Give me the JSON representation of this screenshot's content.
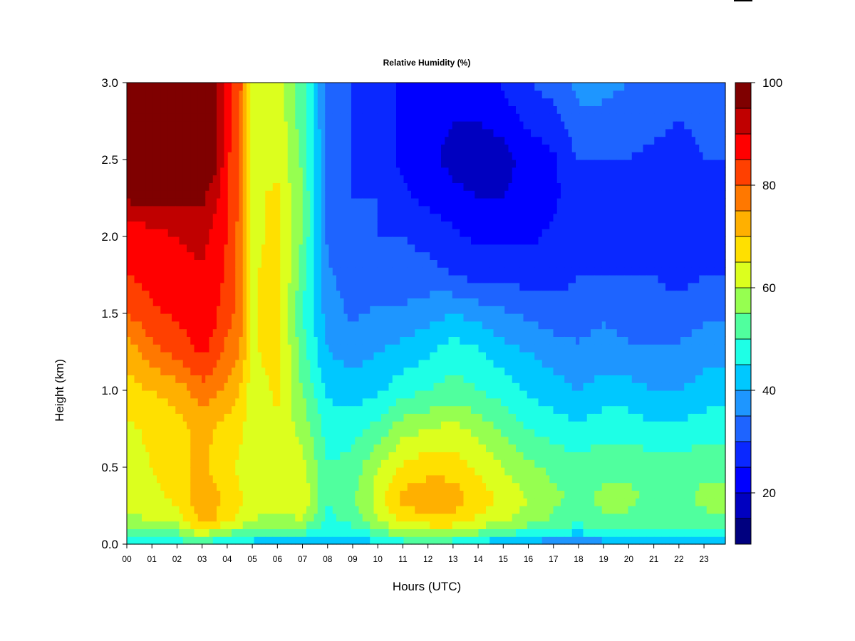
{
  "chart_data": {
    "type": "heatmap",
    "title": "Relative Humidity (%)",
    "xlabel": "Hours (UTC)",
    "ylabel": "Height (km)",
    "x_ticks": [
      "00",
      "01",
      "02",
      "03",
      "04",
      "05",
      "06",
      "07",
      "08",
      "09",
      "10",
      "11",
      "12",
      "13",
      "14",
      "15",
      "16",
      "17",
      "18",
      "19",
      "20",
      "21",
      "22",
      "23"
    ],
    "xlim": [
      0,
      23.85
    ],
    "y_ticks": [
      "0.0",
      "0.5",
      "1.0",
      "1.5",
      "2.0",
      "2.5",
      "3.0"
    ],
    "ylim": [
      0.0,
      3.0
    ],
    "colorbar": {
      "ticks": [
        "20",
        "40",
        "60",
        "80",
        "100"
      ],
      "range": [
        10,
        100
      ],
      "levels": [
        10,
        15,
        20,
        25,
        30,
        35,
        40,
        45,
        50,
        55,
        60,
        65,
        70,
        75,
        80,
        85,
        90,
        95,
        100
      ],
      "colors": [
        "#00007F",
        "#0000C0",
        "#0000FF",
        "#0A28FF",
        "#1E64FF",
        "#1E96FF",
        "#00C8FF",
        "#1EFFE6",
        "#50FF9E",
        "#96FF50",
        "#DCFF1E",
        "#FFE000",
        "#FFB000",
        "#FF7800",
        "#FF4000",
        "#FF0000",
        "#C00000",
        "#7F0000"
      ]
    },
    "grid": false,
    "values_note": "",
    "profile_heights_km": [
      0.0,
      0.05,
      0.15,
      0.3,
      0.5,
      0.75,
      1.0,
      1.25,
      1.5,
      1.75,
      2.0,
      2.25,
      2.5,
      2.75,
      3.0
    ],
    "profiles": [
      {
        "hour": 0.0,
        "rh": [
          45,
          50,
          58,
          63,
          63,
          64,
          68,
          72,
          80,
          85,
          85,
          96,
          98,
          98,
          98
        ]
      },
      {
        "hour": 1.0,
        "rh": [
          45,
          52,
          60,
          64,
          65,
          66,
          70,
          78,
          84,
          87,
          88,
          97,
          98,
          98,
          98
        ]
      },
      {
        "hour": 2.0,
        "rh": [
          45,
          52,
          62,
          66,
          67,
          68,
          72,
          82,
          86,
          88,
          90,
          97,
          98,
          98,
          98
        ]
      },
      {
        "hour": 3.0,
        "rh": [
          50,
          60,
          72,
          74,
          72,
          72,
          78,
          86,
          88,
          89,
          92,
          96,
          98,
          98,
          98
        ]
      },
      {
        "hour": 3.5,
        "rh": [
          45,
          55,
          70,
          72,
          68,
          70,
          76,
          83,
          86,
          87,
          88,
          92,
          98,
          98,
          98
        ]
      },
      {
        "hour": 4.0,
        "rh": [
          42,
          52,
          66,
          68,
          66,
          68,
          74,
          78,
          82,
          84,
          85,
          85,
          86,
          88,
          88
        ]
      },
      {
        "hour": 4.5,
        "rh": [
          40,
          50,
          64,
          66,
          64,
          66,
          70,
          75,
          78,
          78,
          78,
          80,
          80,
          80,
          82
        ]
      },
      {
        "hour": 5.0,
        "rh": [
          40,
          50,
          60,
          62,
          62,
          62,
          62,
          64,
          64,
          64,
          64,
          64,
          63,
          63,
          63
        ]
      },
      {
        "hour": 6.0,
        "rh": [
          40,
          48,
          58,
          62,
          62,
          64,
          66,
          68,
          68,
          68,
          66,
          66,
          64,
          64,
          64
        ]
      },
      {
        "hour": 7.0,
        "rh": [
          42,
          48,
          60,
          64,
          62,
          58,
          55,
          52,
          50,
          52,
          55,
          55,
          54,
          52,
          52
        ]
      },
      {
        "hour": 8.0,
        "rh": [
          40,
          44,
          48,
          50,
          50,
          48,
          44,
          40,
          38,
          36,
          34,
          34,
          34,
          34,
          34
        ]
      },
      {
        "hour": 9.0,
        "rh": [
          40,
          44,
          52,
          54,
          52,
          48,
          42,
          38,
          34,
          32,
          30,
          30,
          30,
          30,
          30
        ]
      },
      {
        "hour": 10.0,
        "rh": [
          42,
          50,
          60,
          62,
          60,
          52,
          44,
          40,
          36,
          32,
          30,
          30,
          28,
          28,
          28
        ]
      },
      {
        "hour": 11.0,
        "rh": [
          44,
          56,
          66,
          72,
          66,
          58,
          48,
          42,
          36,
          32,
          30,
          26,
          24,
          24,
          24
        ]
      },
      {
        "hour": 12.0,
        "rh": [
          44,
          56,
          68,
          74,
          68,
          60,
          50,
          44,
          38,
          32,
          28,
          24,
          22,
          22,
          22
        ]
      },
      {
        "hour": 13.0,
        "rh": [
          44,
          56,
          68,
          73,
          68,
          62,
          52,
          48,
          40,
          30,
          26,
          22,
          18,
          20,
          22
        ]
      },
      {
        "hour": 14.0,
        "rh": [
          42,
          52,
          64,
          68,
          64,
          58,
          50,
          46,
          38,
          28,
          24,
          20,
          16,
          20,
          22
        ]
      },
      {
        "hour": 15.0,
        "rh": [
          38,
          48,
          60,
          64,
          60,
          54,
          48,
          42,
          36,
          28,
          24,
          20,
          18,
          22,
          26
        ]
      },
      {
        "hour": 16.0,
        "rh": [
          36,
          46,
          58,
          60,
          56,
          50,
          44,
          40,
          34,
          28,
          24,
          22,
          22,
          26,
          30
        ]
      },
      {
        "hour": 17.0,
        "rh": [
          34,
          44,
          54,
          56,
          54,
          48,
          42,
          38,
          32,
          28,
          26,
          24,
          24,
          28,
          32
        ]
      },
      {
        "hour": 18.0,
        "rh": [
          34,
          42,
          52,
          54,
          52,
          46,
          40,
          36,
          32,
          30,
          28,
          28,
          30,
          34,
          36
        ]
      },
      {
        "hour": 19.0,
        "rh": [
          36,
          44,
          54,
          56,
          54,
          48,
          42,
          38,
          34,
          30,
          28,
          28,
          30,
          34,
          36
        ]
      },
      {
        "hour": 20.0,
        "rh": [
          36,
          44,
          54,
          56,
          54,
          48,
          42,
          36,
          32,
          30,
          28,
          28,
          30,
          33,
          35
        ]
      },
      {
        "hour": 21.0,
        "rh": [
          36,
          44,
          52,
          54,
          52,
          46,
          40,
          36,
          32,
          30,
          28,
          28,
          28,
          32,
          34
        ]
      },
      {
        "hour": 22.0,
        "rh": [
          36,
          44,
          52,
          54,
          52,
          46,
          40,
          36,
          32,
          28,
          28,
          26,
          26,
          30,
          32
        ]
      },
      {
        "hour": 23.0,
        "rh": [
          36,
          44,
          54,
          56,
          54,
          48,
          42,
          38,
          34,
          30,
          28,
          28,
          30,
          32,
          34
        ]
      },
      {
        "hour": 23.85,
        "rh": [
          36,
          44,
          54,
          56,
          54,
          48,
          42,
          38,
          34,
          30,
          30,
          30,
          30,
          32,
          34
        ]
      }
    ]
  }
}
